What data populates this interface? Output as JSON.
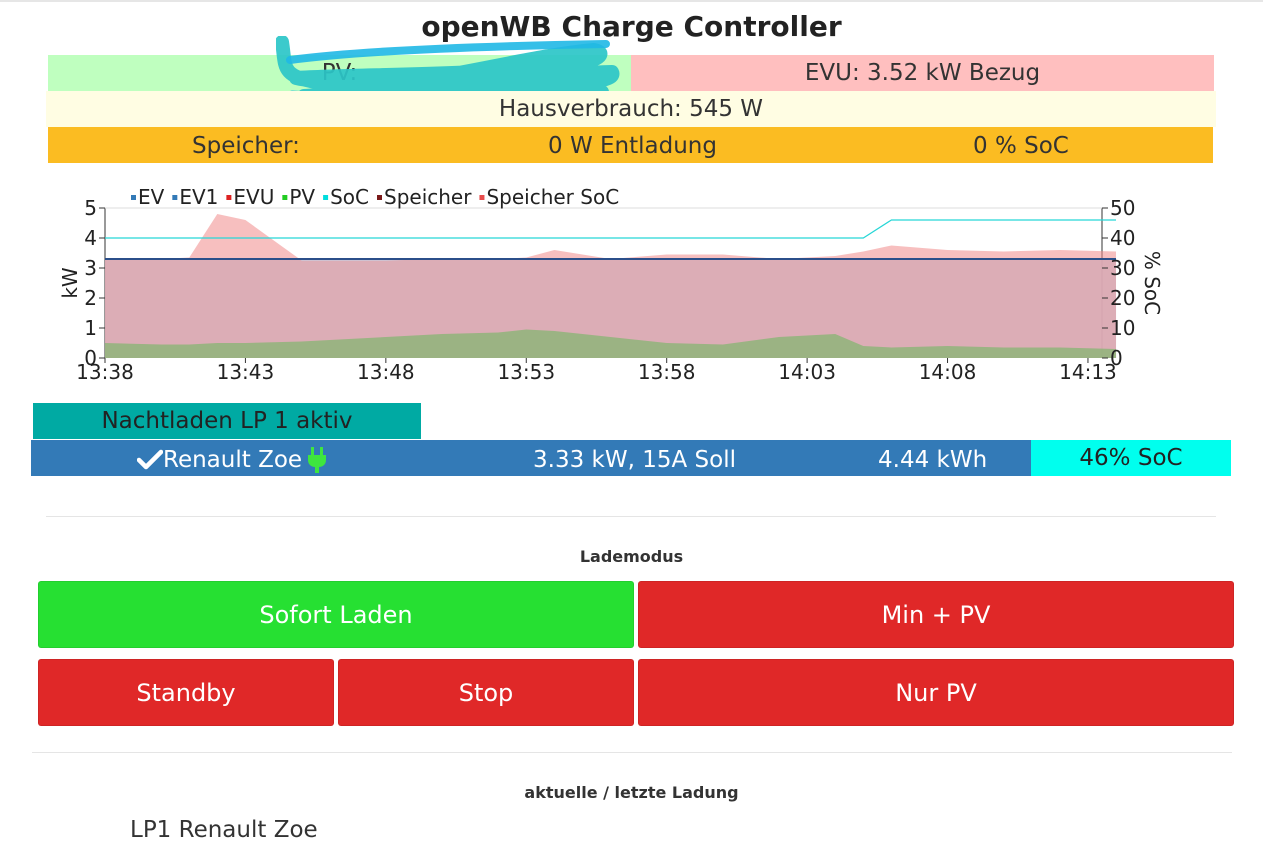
{
  "app": {
    "title": "openWB Charge Controller"
  },
  "status": {
    "pv_label": "PV:",
    "evu_text": "EVU: 3.52 kW Bezug",
    "hausverbrauch_text": "Hausverbrauch: 545 W",
    "speicher_label": "Speicher:",
    "speicher_power": "0 W Entladung",
    "speicher_soc": "0 % SoC"
  },
  "colors": {
    "pv_bg": "#bfffbf",
    "evu_bg": "#ffbfbf",
    "haus_bg": "#fffde3",
    "speicher_bg": "#fbbc22",
    "nacht_bg": "#00aaa3",
    "lp_bg": "#337ab7",
    "soc_bg": "#00ffee",
    "active_mode": "#26e032",
    "inactive_mode": "#e02828"
  },
  "chart_data": {
    "type": "area",
    "legend": [
      {
        "name": "EV",
        "color": "#337ab7"
      },
      {
        "name": "EV1",
        "color": "#337ab7"
      },
      {
        "name": "EVU",
        "color": "#dd2222"
      },
      {
        "name": "PV",
        "color": "#22cc22"
      },
      {
        "name": "SoC",
        "color": "#00dddd"
      },
      {
        "name": "Speicher",
        "color": "#7a1a1a"
      },
      {
        "name": "Speicher SoC",
        "color": "#e84c4c"
      }
    ],
    "legend_position": "top",
    "ylabel": "kW",
    "y2label": "% SoC",
    "ylim": [
      0,
      5
    ],
    "y2lim": [
      0,
      50
    ],
    "yticks": [
      "0",
      "1",
      "2",
      "3",
      "4",
      "5"
    ],
    "y2ticks": [
      "0",
      "10",
      "20",
      "30",
      "40",
      "50"
    ],
    "xticks": [
      "13:38",
      "13:43",
      "13:48",
      "13:53",
      "13:58",
      "14:03",
      "14:08",
      "14:13"
    ],
    "x": [
      "13:38",
      "13:40",
      "13:41",
      "13:42",
      "13:43",
      "13:45",
      "13:48",
      "13:50",
      "13:52",
      "13:53",
      "13:54",
      "13:56",
      "13:58",
      "14:00",
      "14:02",
      "14:04",
      "14:05",
      "14:06",
      "14:08",
      "14:10",
      "14:12",
      "14:14"
    ],
    "series": [
      {
        "name": "EVU",
        "values": [
          3.3,
          3.3,
          3.35,
          4.8,
          4.6,
          3.25,
          3.25,
          3.3,
          3.3,
          3.35,
          3.6,
          3.3,
          3.45,
          3.45,
          3.3,
          3.4,
          3.55,
          3.75,
          3.6,
          3.55,
          3.6,
          3.55
        ]
      },
      {
        "name": "EV",
        "values": [
          3.3,
          3.3,
          3.3,
          3.3,
          3.3,
          3.3,
          3.3,
          3.3,
          3.3,
          3.3,
          3.3,
          3.3,
          3.3,
          3.3,
          3.3,
          3.3,
          3.3,
          3.3,
          3.3,
          3.3,
          3.3,
          3.3
        ]
      },
      {
        "name": "PV",
        "values": [
          0.5,
          0.45,
          0.45,
          0.5,
          0.5,
          0.55,
          0.7,
          0.8,
          0.85,
          0.95,
          0.9,
          0.7,
          0.5,
          0.45,
          0.7,
          0.8,
          0.4,
          0.35,
          0.4,
          0.35,
          0.35,
          0.3
        ]
      },
      {
        "name": "SoC",
        "values": [
          40,
          40,
          40,
          40,
          40,
          40,
          40,
          40,
          40,
          40,
          40,
          40,
          40,
          40,
          40,
          40,
          40,
          46,
          46,
          46,
          46,
          46
        ]
      }
    ]
  },
  "loadpoint": {
    "nachtladen_text": "Nachtladen LP 1 aktiv",
    "name": "Renault Zoe",
    "check_icon": "check-icon",
    "plug_icon": "plug-icon",
    "power_text": "3.33 kW, 15A Soll",
    "energy_text": "4.44 kWh",
    "soc_text": "46% SoC"
  },
  "lademodus": {
    "heading": "Lademodus",
    "sofort": "Sofort Laden",
    "min_pv": "Min + PV",
    "standby": "Standby",
    "stop": "Stop",
    "nur_pv": "Nur PV",
    "active": "Sofort Laden"
  },
  "ladung": {
    "heading": "aktuelle / letzte Ladung",
    "lp_name": "LP1 Renault Zoe"
  }
}
